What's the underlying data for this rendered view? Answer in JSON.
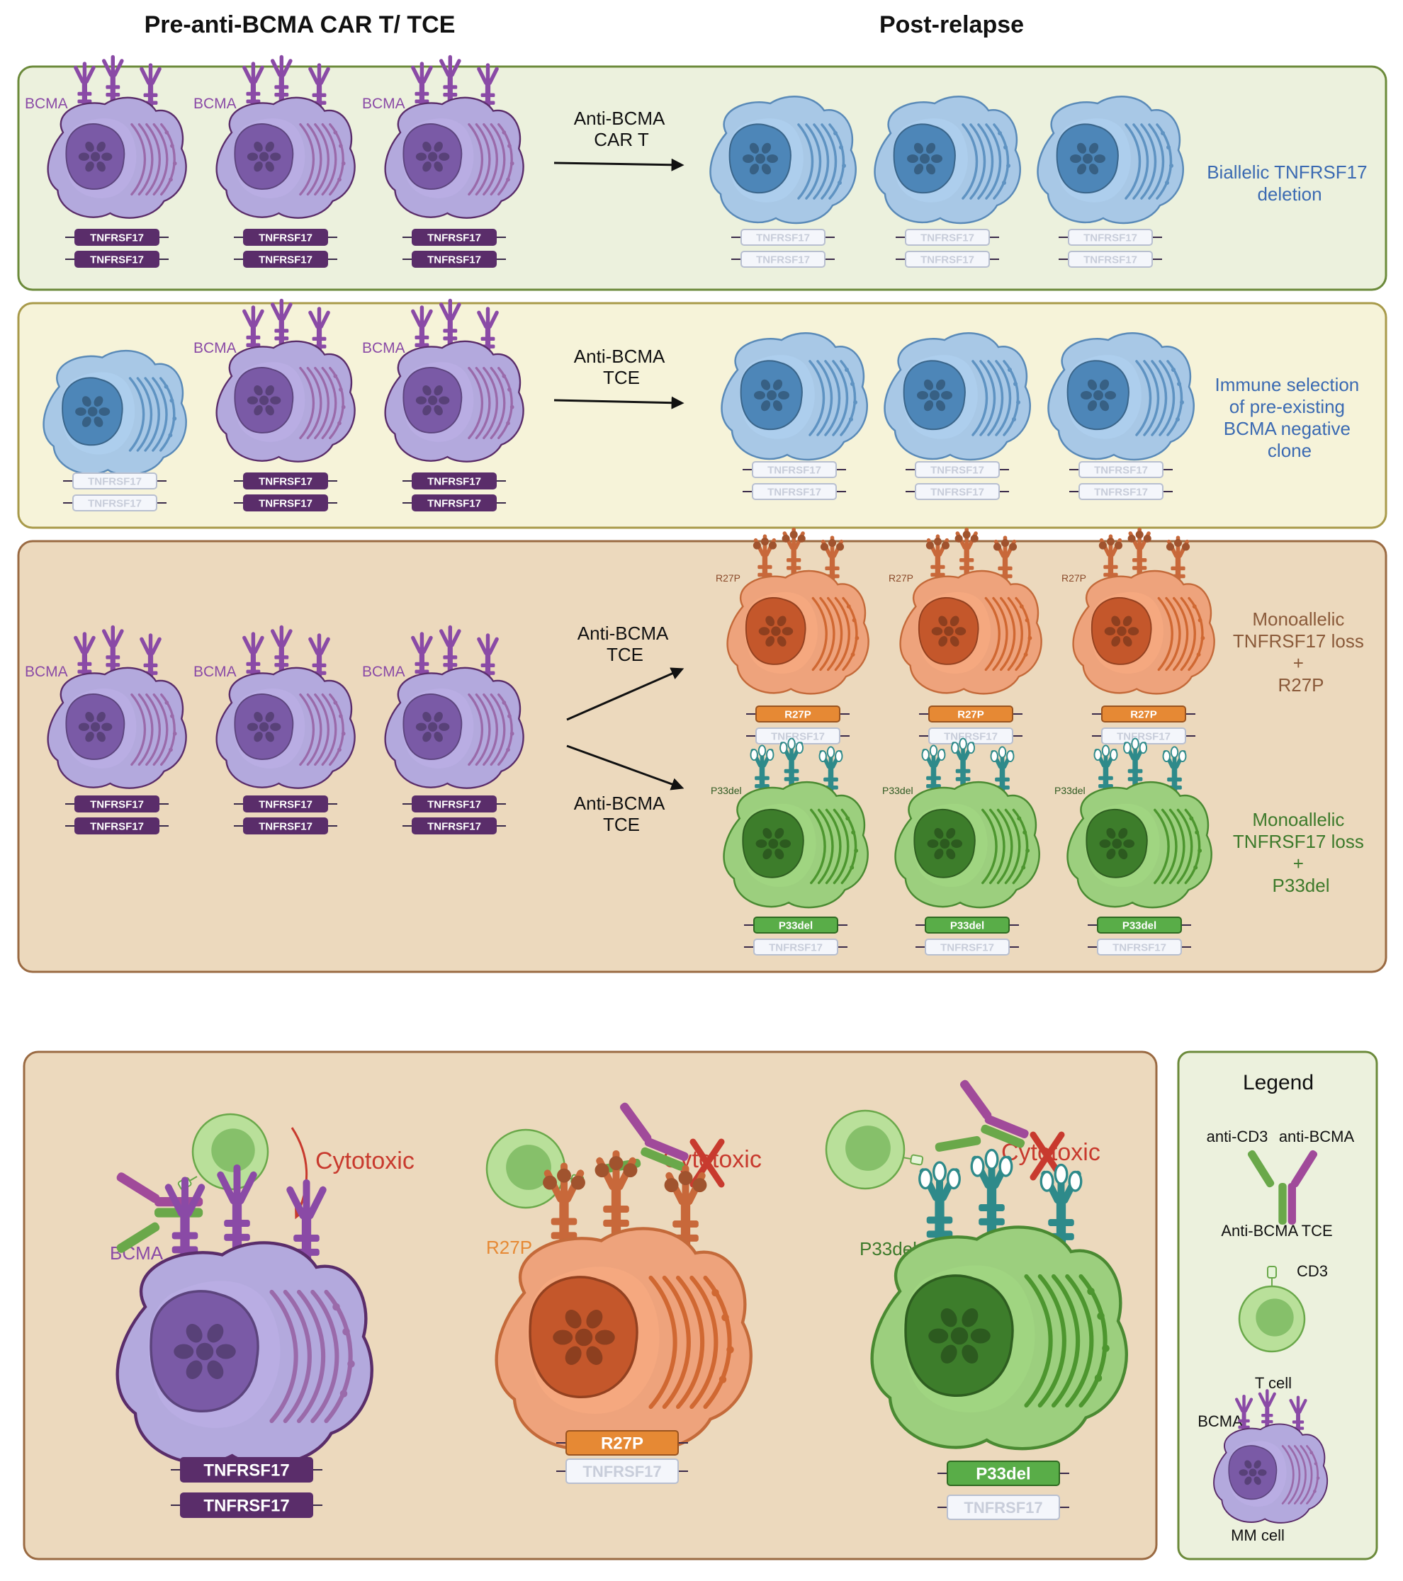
{
  "headers": {
    "pre": "Pre-anti-BCMA CAR T/ TCE",
    "post": "Post-relapse"
  },
  "gene_label": "TNFRSF17",
  "bcma_label": "BCMA",
  "panels": [
    {
      "arrow_lines": [
        "Anti-BCMA",
        "CAR T"
      ],
      "outcome_lines": [
        "Biallelic TNFRSF17",
        "deletion"
      ]
    },
    {
      "arrow_lines": [
        "Anti-BCMA",
        "TCE"
      ],
      "outcome_lines": [
        "Immune selection",
        "of pre-existing",
        "BCMA negative",
        "clone"
      ]
    },
    {
      "upper_arrow_lines": [
        "Anti-BCMA",
        "TCE"
      ],
      "lower_arrow_lines": [
        "Anti-BCMA",
        "TCE"
      ],
      "upper_outcome_lines": [
        "Monoallelic",
        "TNFRSF17 loss",
        "+",
        "R27P"
      ],
      "lower_outcome_lines": [
        "Monoallelic",
        "TNFRSF17 loss",
        "+",
        "P33del"
      ]
    }
  ],
  "mutations": {
    "r27p": "R27P",
    "p33del": "P33del"
  },
  "mechanism": {
    "cytotoxic": "Cytotoxic"
  },
  "legend": {
    "title": "Legend",
    "anti_cd3": "anti-CD3",
    "anti_bcma": "anti-BCMA",
    "tce": "Anti-BCMA TCE",
    "cd3": "CD3",
    "tcell": "T cell",
    "bcma": "BCMA",
    "mmcell": "MM cell"
  },
  "colors": {
    "purple_cell": "#b3a9dd",
    "purple_nuc": "#7a5aa6",
    "purple_dark": "#5a2d6a",
    "blue_cell": "#a8c8e6",
    "blue_nuc": "#4d86b8",
    "orange_cell": "#eea37c",
    "orange_nuc": "#c4572b",
    "orange_gene": "#e68934",
    "green_cell": "#9ccf7e",
    "green_nuc": "#3d7d2b",
    "green_gene": "#59ad48",
    "teal_receptor": "#2e8a8a",
    "outcome_blue": "#3b6ab2",
    "outcome_brown": "#8a5a3a",
    "outcome_green": "#3d7a2b",
    "cytotoxic_red": "#c83a2e"
  }
}
